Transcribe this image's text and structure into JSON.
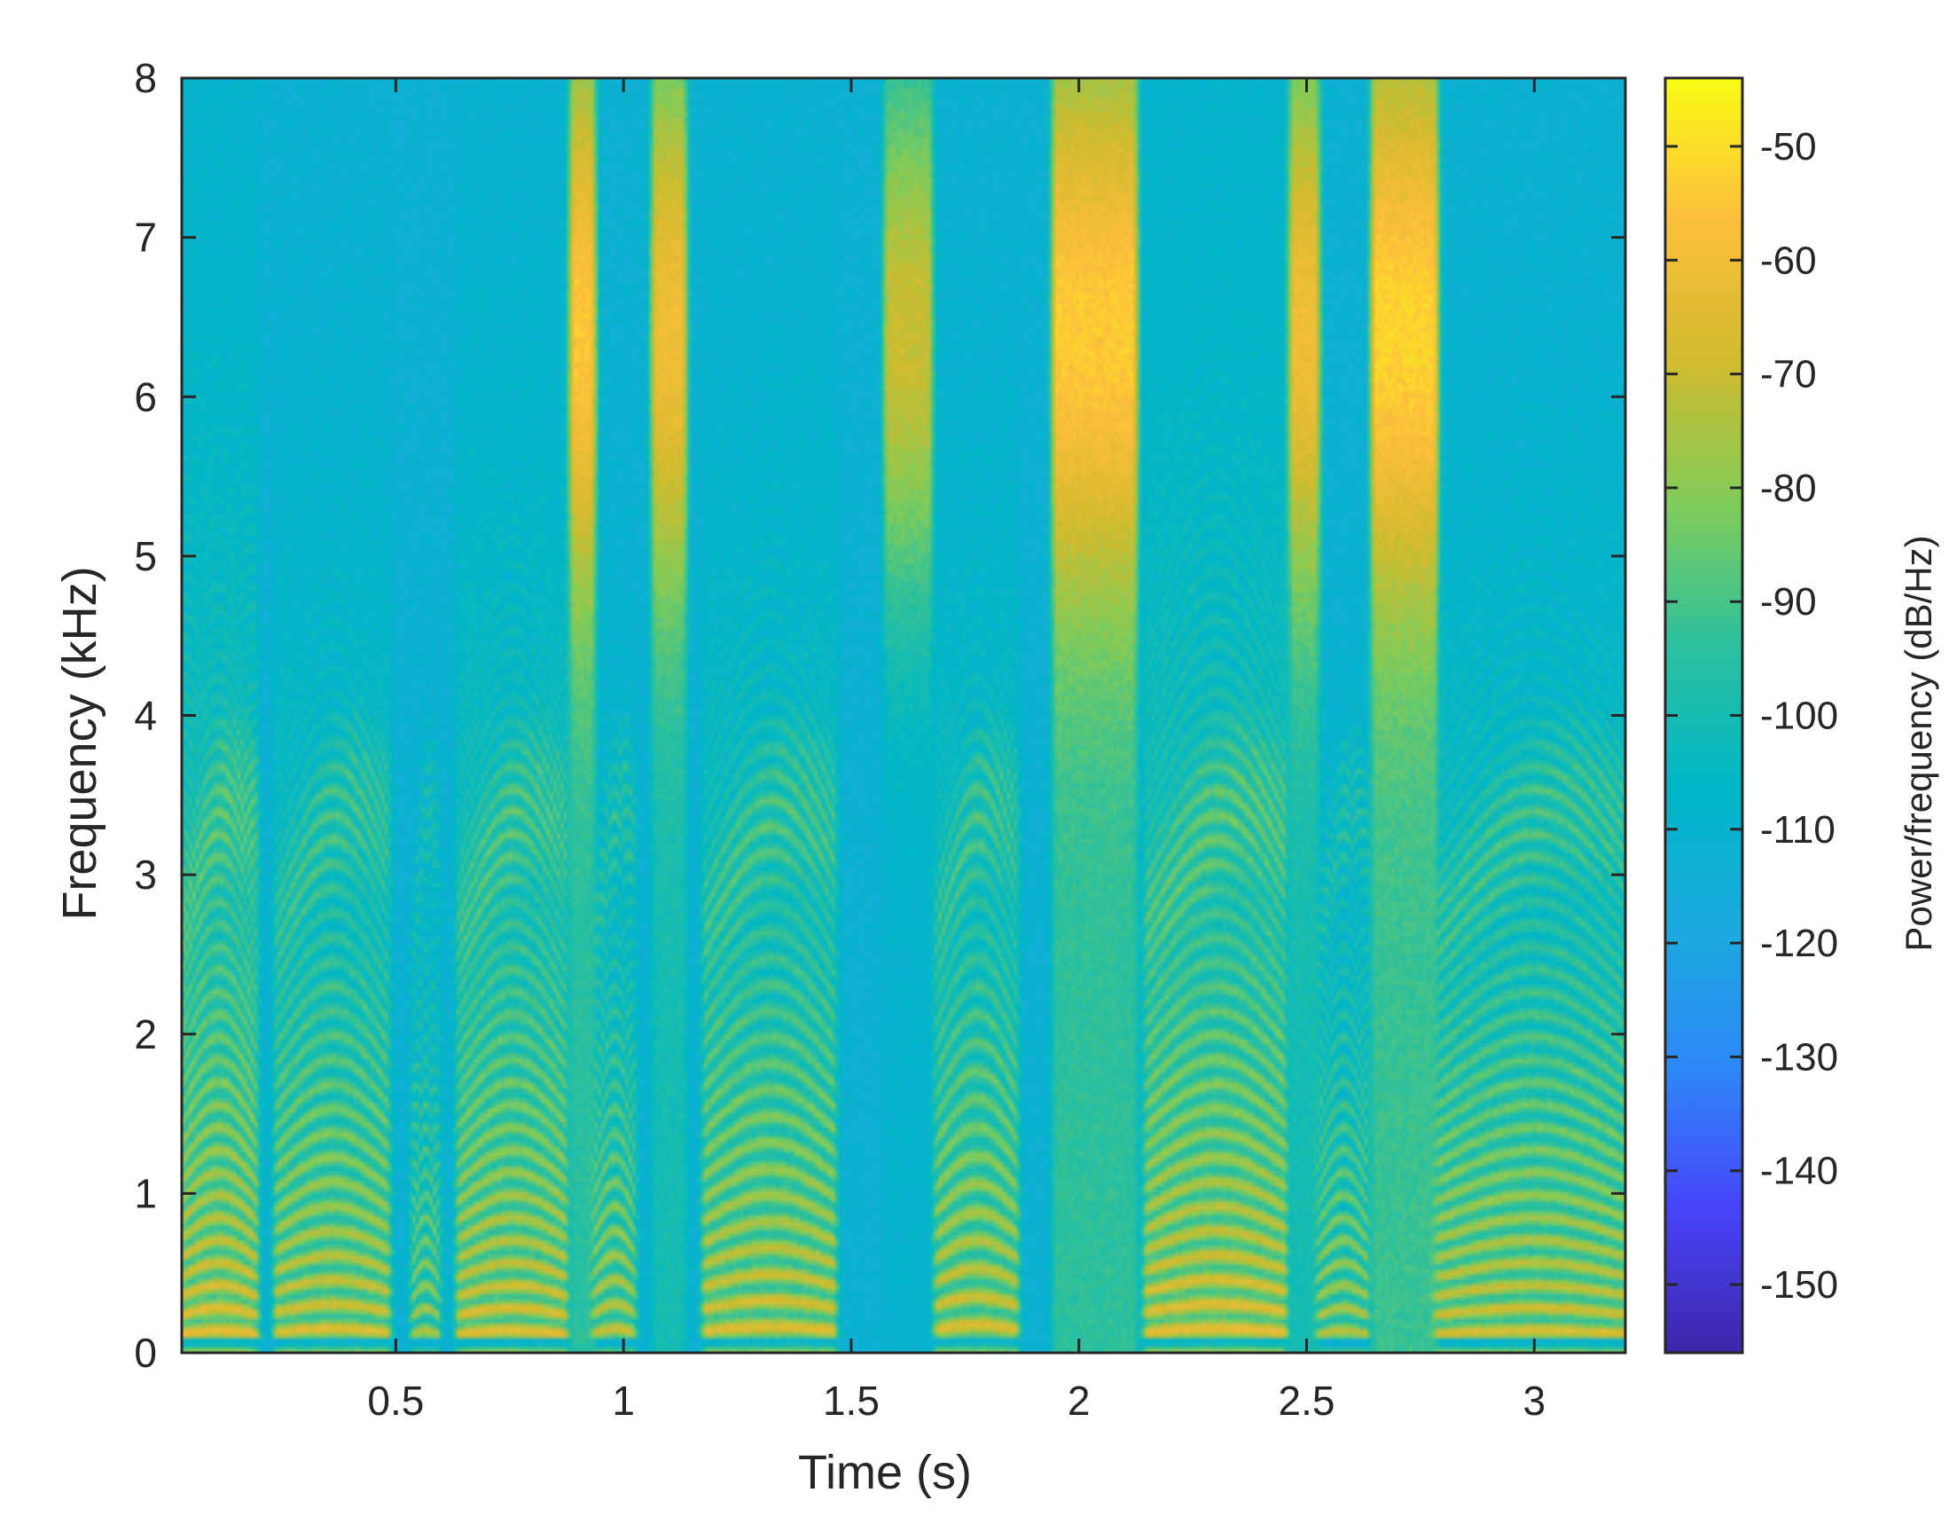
{
  "chart_data": {
    "type": "heatmap",
    "title": "",
    "xlabel": "Time (s)",
    "ylabel": "Frequency (kHz)",
    "colorbar_label": "Power/frequency (dB/Hz)",
    "xlim": [
      0.03,
      3.2
    ],
    "ylim": [
      0,
      8
    ],
    "x_ticks": [
      0.5,
      1,
      1.5,
      2,
      2.5,
      3
    ],
    "x_tick_labels": [
      "0.5",
      "1",
      "1.5",
      "2",
      "2.5",
      "3"
    ],
    "y_ticks": [
      0,
      1,
      2,
      3,
      4,
      5,
      6,
      7,
      8
    ],
    "y_tick_labels": [
      "0",
      "1",
      "2",
      "3",
      "4",
      "5",
      "6",
      "7",
      "8"
    ],
    "clim": [
      -156,
      -44
    ],
    "colorbar_ticks": [
      -50,
      -60,
      -70,
      -80,
      -90,
      -100,
      -110,
      -120,
      -130,
      -140,
      -150
    ],
    "colorbar_tick_labels": [
      "-50",
      "-60",
      "-70",
      "-80",
      "-90",
      "-100",
      "-110",
      "-120",
      "-130",
      "-140",
      "-150"
    ],
    "colormap": [
      "#3e26a8",
      "#4743f8",
      "#2e87f7",
      "#1caadf",
      "#00b7c7",
      "#2dc09d",
      "#81cc59",
      "#d1bb2e",
      "#fdbe3d",
      "#f9fb15"
    ],
    "grid": false,
    "segments": [
      {
        "t0": 0.03,
        "t1": 0.19,
        "kind": "voiced",
        "f0": 0.12,
        "peak": -58
      },
      {
        "t0": 0.24,
        "t1": 0.48,
        "kind": "voiced",
        "f0": 0.13,
        "peak": -62
      },
      {
        "t0": 0.54,
        "t1": 0.59,
        "kind": "voiced",
        "f0": 0.12,
        "peak": -70
      },
      {
        "t0": 0.64,
        "t1": 0.87,
        "kind": "voiced",
        "f0": 0.12,
        "peak": -60
      },
      {
        "t0": 0.89,
        "t1": 0.93,
        "kind": "fricative",
        "peak": -55
      },
      {
        "t0": 0.94,
        "t1": 1.02,
        "kind": "voiced",
        "f0": 0.13,
        "peak": -66
      },
      {
        "t0": 1.07,
        "t1": 1.13,
        "kind": "fricative",
        "peak": -60
      },
      {
        "t0": 1.18,
        "t1": 1.46,
        "kind": "voiced",
        "f0": 0.14,
        "peak": -61
      },
      {
        "t0": 1.58,
        "t1": 1.67,
        "kind": "fricative",
        "peak": -70
      },
      {
        "t0": 1.69,
        "t1": 1.86,
        "kind": "voiced",
        "f0": 0.15,
        "peak": -62
      },
      {
        "t0": 1.95,
        "t1": 2.12,
        "kind": "fricative",
        "peak": -54
      },
      {
        "t0": 2.15,
        "t1": 2.45,
        "kind": "voiced",
        "f0": 0.13,
        "peak": -58
      },
      {
        "t0": 2.47,
        "t1": 2.52,
        "kind": "fricative",
        "peak": -60
      },
      {
        "t0": 2.53,
        "t1": 2.63,
        "kind": "voiced",
        "f0": 0.12,
        "peak": -68
      },
      {
        "t0": 2.65,
        "t1": 2.78,
        "kind": "fricative",
        "peak": -52
      },
      {
        "t0": 2.79,
        "t1": 3.2,
        "kind": "voiced",
        "f0": 0.12,
        "peak": -62
      }
    ]
  }
}
